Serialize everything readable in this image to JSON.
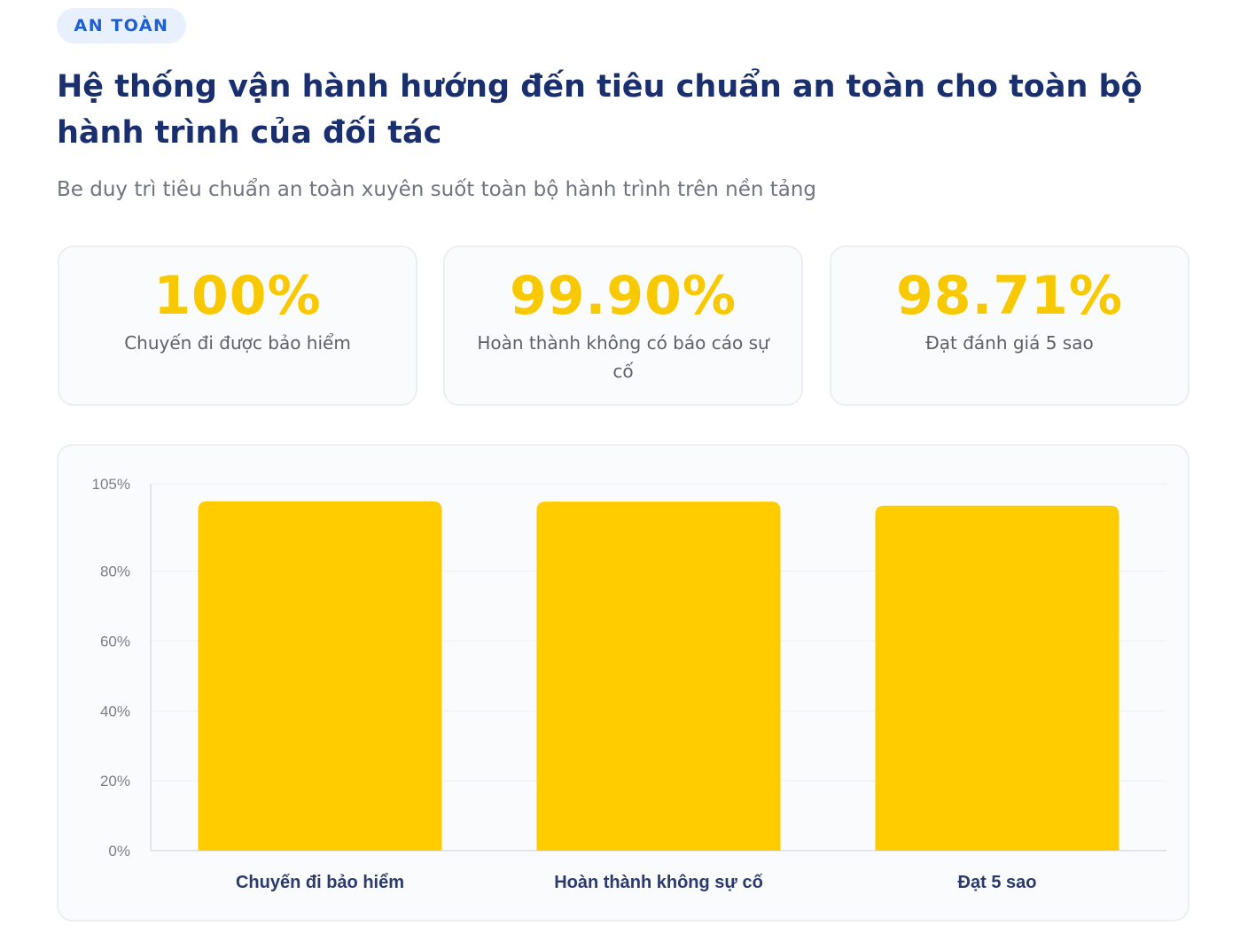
{
  "badge": "AN TOÀN",
  "title": "Hệ thống vận hành hướng đến tiêu chuẩn an toàn cho toàn bộ hành trình của đối tác",
  "subtitle": "Be duy trì tiêu chuẩn an toàn xuyên suốt toàn bộ hành trình trên nền tảng",
  "stats": [
    {
      "value": "100%",
      "label": "Chuyến đi được bảo hiểm"
    },
    {
      "value": "99.90%",
      "label": "Hoàn thành không có báo cáo sự cố"
    },
    {
      "value": "98.71%",
      "label": "Đạt đánh giá 5 sao"
    }
  ],
  "colors": {
    "bar": "#ffcc00",
    "stat_value": "#f8c800",
    "title": "#1a2f6e",
    "badge": "#1d5fd1"
  },
  "chart_data": {
    "type": "bar",
    "categories": [
      "Chuyến đi bảo hiểm",
      "Hoàn thành không sự cố",
      "Đạt 5 sao"
    ],
    "values": [
      100,
      99.9,
      98.71
    ],
    "ylim": [
      0,
      105
    ],
    "yticks": [
      0,
      20,
      40,
      60,
      80,
      105
    ],
    "ytick_labels": [
      "0%",
      "20%",
      "40%",
      "60%",
      "80%",
      "105%"
    ],
    "title": "",
    "xlabel": "",
    "ylabel": "",
    "grid": true,
    "legend": "none"
  }
}
